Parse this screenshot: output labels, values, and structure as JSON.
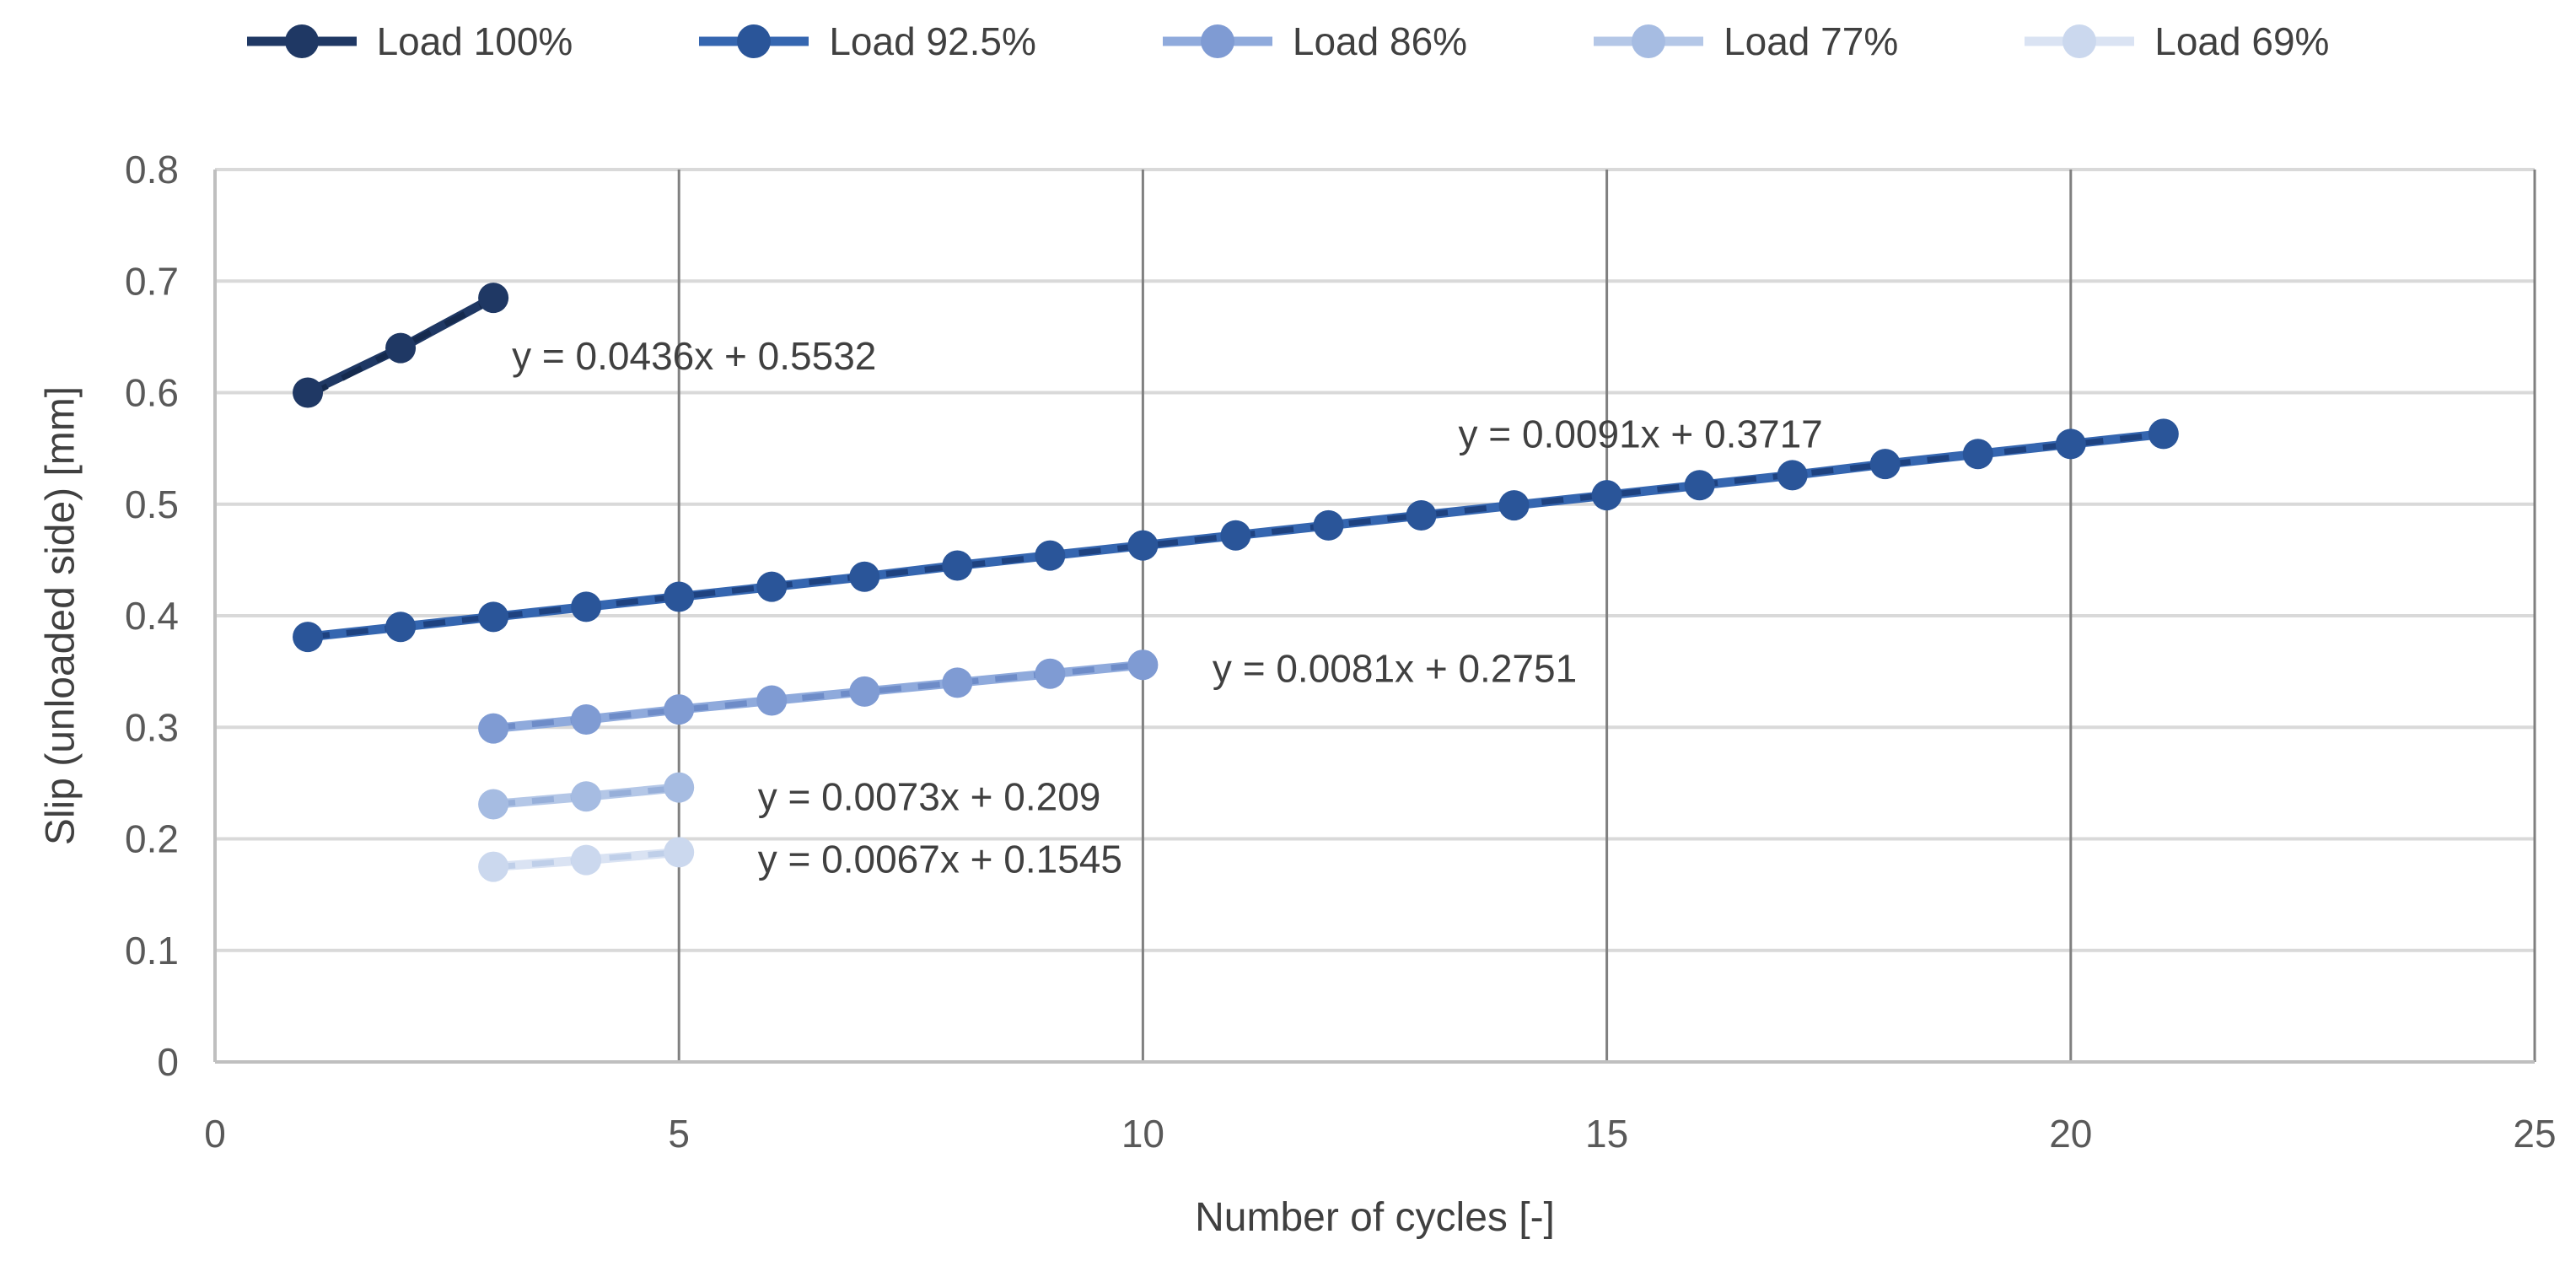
{
  "chart_data": {
    "type": "line",
    "title": "",
    "xlabel": "Number of cycles [-]",
    "ylabel": "Slip (unloaded side) [mm]",
    "xlim": [
      0,
      25
    ],
    "ylim": [
      0,
      0.8
    ],
    "x_ticks": [
      0,
      5,
      10,
      15,
      20,
      25
    ],
    "y_ticks": [
      0,
      0.1,
      0.2,
      0.3,
      0.4,
      0.5,
      0.6,
      0.7,
      0.8
    ],
    "y_tick_labels": [
      "0",
      "0.1",
      "0.2",
      "0.3",
      "0.4",
      "0.5",
      "0.6",
      "0.7",
      "0.8"
    ],
    "grid": "horizontal-light, vertical-dark",
    "legend_position": "top",
    "series": [
      {
        "name": "Load 100%",
        "color": "#1F3864",
        "marker_color": "#1F3864",
        "trend_color": "#152A4E",
        "x": [
          1,
          2,
          3
        ],
        "y": [
          0.6,
          0.64,
          0.685
        ],
        "trendline": {
          "equation": "y = 0.0436x + 0.5532",
          "slope": 0.0436,
          "intercept": 0.5532,
          "label_x": 3.2,
          "label_y": 0.63
        }
      },
      {
        "name": "Load 92.5%",
        "color": "#3566B0",
        "marker_color": "#2A5599",
        "trend_color": "#1E4280",
        "x": [
          1,
          2,
          3,
          4,
          5,
          6,
          7,
          8,
          9,
          10,
          11,
          12,
          13,
          14,
          15,
          16,
          17,
          18,
          19,
          20,
          21
        ],
        "y": [
          0.381,
          0.39,
          0.399,
          0.408,
          0.417,
          0.426,
          0.435,
          0.445,
          0.454,
          0.463,
          0.472,
          0.481,
          0.49,
          0.499,
          0.508,
          0.517,
          0.526,
          0.536,
          0.545,
          0.554,
          0.563
        ],
        "trendline": {
          "equation": "y = 0.0091x + 0.3717",
          "slope": 0.0091,
          "intercept": 0.3717,
          "label_x": 13.4,
          "label_y": 0.56
        }
      },
      {
        "name": "Load 86%",
        "color": "#8FAADC",
        "marker_color": "#7F9BD3",
        "trend_color": "#6E8CC8",
        "x": [
          3,
          4,
          5,
          6,
          7,
          8,
          9,
          10
        ],
        "y": [
          0.299,
          0.307,
          0.316,
          0.324,
          0.332,
          0.34,
          0.348,
          0.356
        ],
        "trendline": {
          "equation": "y = 0.0081x + 0.2751",
          "slope": 0.0081,
          "intercept": 0.2751,
          "label_x": 10.75,
          "label_y": 0.35
        }
      },
      {
        "name": "Load 77%",
        "color": "#B4C7E7",
        "marker_color": "#A6BCE2",
        "trend_color": "#97AFD9",
        "x": [
          3,
          4,
          5
        ],
        "y": [
          0.231,
          0.238,
          0.246
        ],
        "trendline": {
          "equation": "y = 0.0073x + 0.209",
          "slope": 0.0073,
          "intercept": 0.209,
          "label_x": 5.85,
          "label_y": 0.235
        }
      },
      {
        "name": "Load 69%",
        "color": "#DAE3F3",
        "marker_color": "#CBD8EE",
        "trend_color": "#BFCFE9",
        "x": [
          3,
          4,
          5
        ],
        "y": [
          0.175,
          0.181,
          0.188
        ],
        "trendline": {
          "equation": "y = 0.0067x + 0.1545",
          "slope": 0.0067,
          "intercept": 0.1545,
          "label_x": 5.85,
          "label_y": 0.179
        }
      }
    ],
    "style": {
      "background": "#FFFFFF",
      "grid_h_color": "#D9D9D9",
      "grid_v_color": "#808080",
      "axis_color": "#BFBFBF",
      "tick_text_color": "#595959",
      "title_text_color": "#404040",
      "equation_text_color": "#404040",
      "legend_text_color": "#404040"
    }
  }
}
